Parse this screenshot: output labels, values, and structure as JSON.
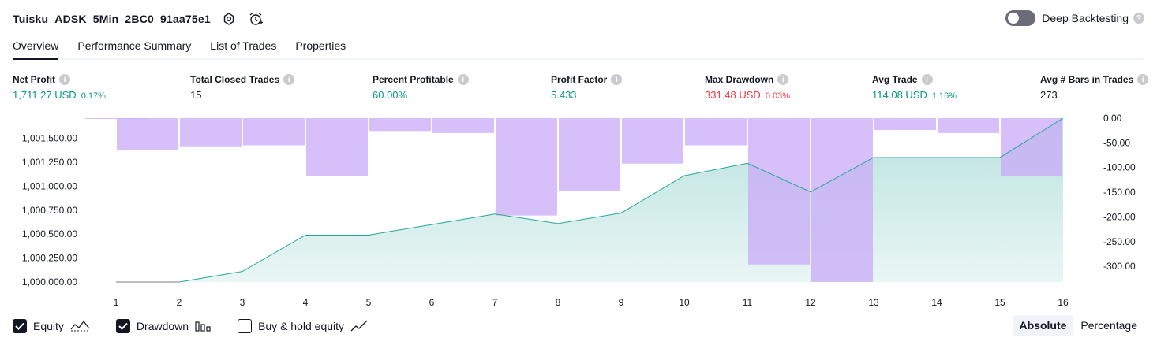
{
  "header": {
    "strategy_name": "Tuisku_ADSK_5Min_2BC0_91aa75e1",
    "icons": [
      "settings-icon",
      "alarm-add-icon"
    ],
    "deep_backtesting_label": "Deep Backtesting",
    "deep_backtesting_on": false
  },
  "tabs": [
    {
      "label": "Overview",
      "active": true
    },
    {
      "label": "Performance Summary",
      "active": false
    },
    {
      "label": "List of Trades",
      "active": false
    },
    {
      "label": "Properties",
      "active": false
    }
  ],
  "metrics": {
    "net_profit": {
      "label": "Net Profit",
      "value": "1,711.27 USD",
      "pct": "0.17%"
    },
    "total_closed_trades": {
      "label": "Total Closed Trades",
      "value": "15"
    },
    "percent_profitable": {
      "label": "Percent Profitable",
      "value": "60.00%"
    },
    "profit_factor": {
      "label": "Profit Factor",
      "value": "5.433"
    },
    "max_drawdown": {
      "label": "Max Drawdown",
      "value": "331.48 USD",
      "pct": "0.03%"
    },
    "avg_trade": {
      "label": "Avg Trade",
      "value": "114.08 USD",
      "pct": "1.16%"
    },
    "avg_bars": {
      "label": "Avg # Bars in Trades",
      "value": "273"
    }
  },
  "chart_data": {
    "type": "bar+area",
    "x": [
      1,
      2,
      3,
      4,
      5,
      6,
      7,
      8,
      9,
      10,
      11,
      12,
      13,
      14,
      15,
      16
    ],
    "series": [
      {
        "name": "Equity",
        "axis": "left",
        "type": "area",
        "color": "#26a69a",
        "values": [
          1000000,
          1000000,
          1000110,
          1000490,
          1000490,
          1000600,
          1000710,
          1000610,
          1000720,
          1001110,
          1001240,
          1000940,
          1001300,
          1001300,
          1001300,
          1001711.27
        ]
      },
      {
        "name": "Drawdown",
        "axis": "right",
        "type": "bar",
        "color": "#c9a9f7",
        "values": [
          -1,
          -65,
          -57,
          -55,
          -117,
          -26,
          -30,
          -197,
          -147,
          -92,
          -55,
          -296,
          -331.48,
          -24,
          -30,
          -117
        ]
      }
    ],
    "left_axis": {
      "ticks": [
        "1,000,000.00",
        "1,000,250.00",
        "1,000,500.00",
        "1,000,750.00",
        "1,001,000.00",
        "1,001,250.00",
        "1,001,500.00"
      ],
      "range": [
        1000000,
        1001711.27
      ]
    },
    "right_axis": {
      "ticks": [
        "0.00",
        "-50.00",
        "-100.00",
        "-150.00",
        "-200.00",
        "-250.00",
        "-300.00"
      ],
      "range": [
        -331.48,
        0
      ]
    },
    "x_ticks": [
      "1",
      "2",
      "3",
      "4",
      "5",
      "6",
      "7",
      "8",
      "9",
      "10",
      "11",
      "12",
      "13",
      "14",
      "15",
      "16"
    ],
    "grid": false
  },
  "legend": {
    "items": [
      {
        "label": "Equity",
        "checked": true,
        "icon": "equity-line-icon"
      },
      {
        "label": "Drawdown",
        "checked": true,
        "icon": "drawdown-bars-icon"
      },
      {
        "label": "Buy & hold equity",
        "checked": false,
        "icon": "trend-line-icon"
      }
    ],
    "modes": [
      {
        "label": "Absolute",
        "active": true
      },
      {
        "label": "Percentage",
        "active": false
      }
    ]
  }
}
